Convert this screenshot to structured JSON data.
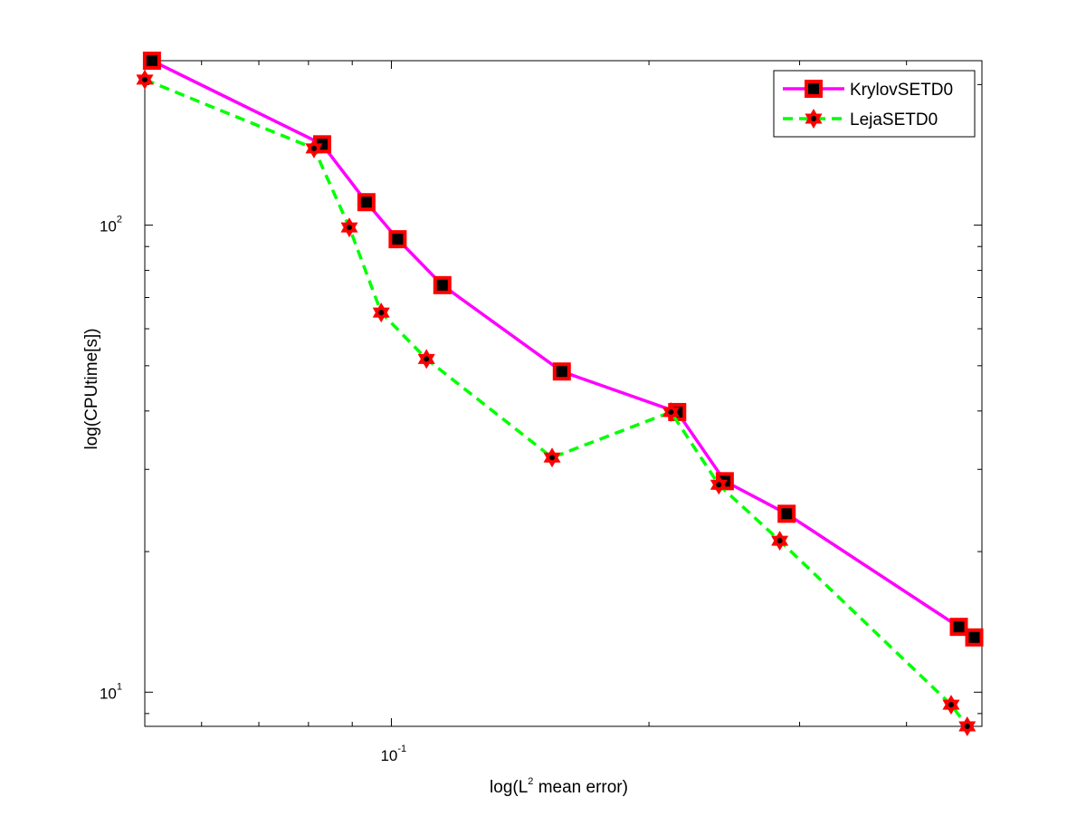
{
  "chart_data": {
    "type": "line",
    "xscale": "log",
    "yscale": "log",
    "xlim": [
      0.0515,
      0.49
    ],
    "ylim": [
      8.45,
      225
    ],
    "xlabel": {
      "text": "log(L",
      "sup": "2",
      "rest": " mean error)"
    },
    "ylabel": "log(CPUtime[s])",
    "x_ticks": [
      {
        "value": 0.1,
        "base": "10",
        "exp": "-1"
      }
    ],
    "y_ticks": [
      {
        "value": 10,
        "base": "10",
        "exp": "1"
      },
      {
        "value": 100,
        "base": "10",
        "exp": "2"
      }
    ],
    "grid": false,
    "legend_position": "top-right",
    "series": [
      {
        "name": "KrylovSETD0",
        "color": "#ff00ff",
        "line_style": "solid",
        "marker": "square",
        "marker_edge": "#ff0000",
        "marker_face": "#000000",
        "x": [
          0.0525,
          0.083,
          0.0935,
          0.1017,
          0.1147,
          0.1582,
          0.2158,
          0.2453,
          0.2897,
          0.4605,
          0.48
        ],
        "y": [
          225,
          149,
          112,
          93.3,
          74.4,
          48.6,
          39.8,
          28.3,
          24.1,
          13.8,
          13.1
        ]
      },
      {
        "name": "LejaSETD0",
        "color": "#00ff00",
        "line_style": "dashed",
        "marker": "hexagram",
        "marker_edge": "#ff0000",
        "marker_face": "#000000",
        "x": [
          0.0515,
          0.0812,
          0.0893,
          0.0973,
          0.1099,
          0.1541,
          0.2122,
          0.2414,
          0.2844,
          0.451,
          0.471
        ],
        "y": [
          205,
          146,
          98.9,
          65.0,
          51.7,
          31.8,
          39.8,
          27.8,
          21.1,
          9.4,
          8.45
        ]
      }
    ]
  }
}
